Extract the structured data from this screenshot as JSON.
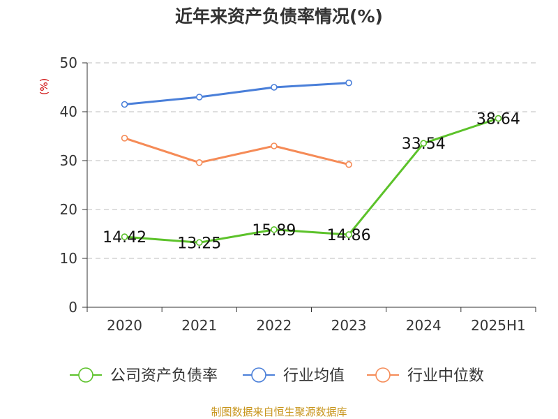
{
  "chart_data": {
    "type": "line",
    "title": "近年来资产负债率情况(%)",
    "ylabel": "(%)",
    "xlabel": "",
    "categories": [
      "2020",
      "2021",
      "2022",
      "2023",
      "2024",
      "2025H1"
    ],
    "ylim": [
      0,
      50
    ],
    "yticks": [
      0,
      10,
      20,
      30,
      40,
      50
    ],
    "grid": true,
    "legend_position": "bottom",
    "series": [
      {
        "name": "公司资产负债率",
        "color": "#5cc22a",
        "values": [
          14.42,
          13.25,
          15.89,
          14.86,
          33.54,
          38.64
        ],
        "labels": [
          "14.42",
          "13.25",
          "15.89",
          "14.86",
          "33.54",
          "38.64"
        ]
      },
      {
        "name": "行业均值",
        "color": "#4a7fd9",
        "values": [
          41.5,
          43.0,
          45.0,
          45.9,
          null,
          null
        ]
      },
      {
        "name": "行业中位数",
        "color": "#f58b57",
        "values": [
          34.6,
          29.6,
          33.0,
          29.2,
          null,
          null
        ]
      }
    ]
  },
  "source": "制图数据来自恒生聚源数据库"
}
